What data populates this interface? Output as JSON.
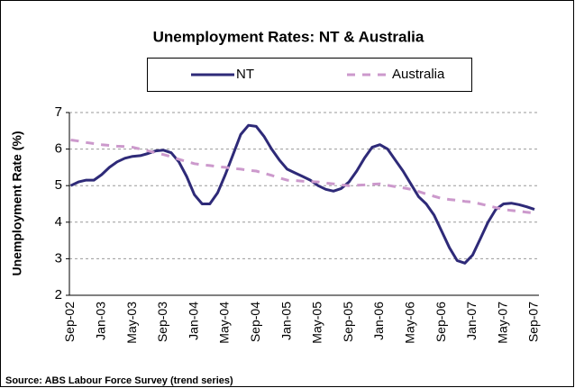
{
  "chart_data": {
    "type": "line",
    "title": "Unemployment Rates: NT & Australia",
    "y_label": "Unemployment Rate (%)",
    "source": "Source: ABS Labour Force Survey (trend series)",
    "categories": [
      "Sep-02",
      null,
      null,
      null,
      "Jan-03",
      null,
      null,
      null,
      "May-03",
      null,
      null,
      null,
      "Sep-03",
      null,
      null,
      null,
      "Jan-04",
      null,
      null,
      null,
      "May-04",
      null,
      null,
      null,
      "Sep-04",
      null,
      null,
      null,
      "Jan-05",
      null,
      null,
      null,
      "May-05",
      null,
      null,
      null,
      "Sep-05",
      null,
      null,
      null,
      "Jan-06",
      null,
      null,
      null,
      "May-06",
      null,
      null,
      null,
      "Sep-06",
      null,
      null,
      null,
      "Jan-07",
      null,
      null,
      null,
      "May-07",
      null,
      null,
      null,
      "Sep-07"
    ],
    "series": [
      {
        "name": "NT",
        "color": "#2e2a78",
        "dashed": false,
        "values": [
          5.0,
          5.1,
          5.15,
          5.15,
          5.3,
          5.5,
          5.65,
          5.75,
          5.8,
          5.82,
          5.88,
          5.95,
          5.97,
          5.9,
          5.65,
          5.25,
          4.75,
          4.5,
          4.5,
          4.8,
          5.3,
          5.85,
          6.4,
          6.65,
          6.62,
          6.35,
          6.0,
          5.7,
          5.45,
          5.35,
          5.25,
          5.15,
          5.0,
          4.9,
          4.85,
          4.92,
          5.1,
          5.4,
          5.75,
          6.05,
          6.12,
          6.0,
          5.7,
          5.4,
          5.05,
          4.7,
          4.5,
          4.2,
          3.75,
          3.3,
          2.95,
          2.88,
          3.1,
          3.55,
          4.0,
          4.35,
          4.5,
          4.52,
          4.48,
          4.42,
          4.35
        ]
      },
      {
        "name": "Australia",
        "color": "#cc99cc",
        "dashed": true,
        "values": [
          6.25,
          6.22,
          6.18,
          6.15,
          6.12,
          6.1,
          6.08,
          6.07,
          6.05,
          6.0,
          5.95,
          5.9,
          5.85,
          5.79,
          5.72,
          5.66,
          5.6,
          5.57,
          5.55,
          5.52,
          5.5,
          5.47,
          5.45,
          5.42,
          5.4,
          5.34,
          5.28,
          5.21,
          5.15,
          5.14,
          5.12,
          5.11,
          5.1,
          5.07,
          5.05,
          5.02,
          5.0,
          5.01,
          5.02,
          5.04,
          5.05,
          5.01,
          4.97,
          4.94,
          4.9,
          4.84,
          4.77,
          4.71,
          4.65,
          4.62,
          4.6,
          4.57,
          4.55,
          4.5,
          4.45,
          4.4,
          4.35,
          4.32,
          4.3,
          4.27,
          4.25
        ]
      }
    ],
    "ylim": [
      2,
      7
    ],
    "yticks": [
      2,
      3,
      4,
      5,
      6,
      7
    ],
    "grid": true
  }
}
